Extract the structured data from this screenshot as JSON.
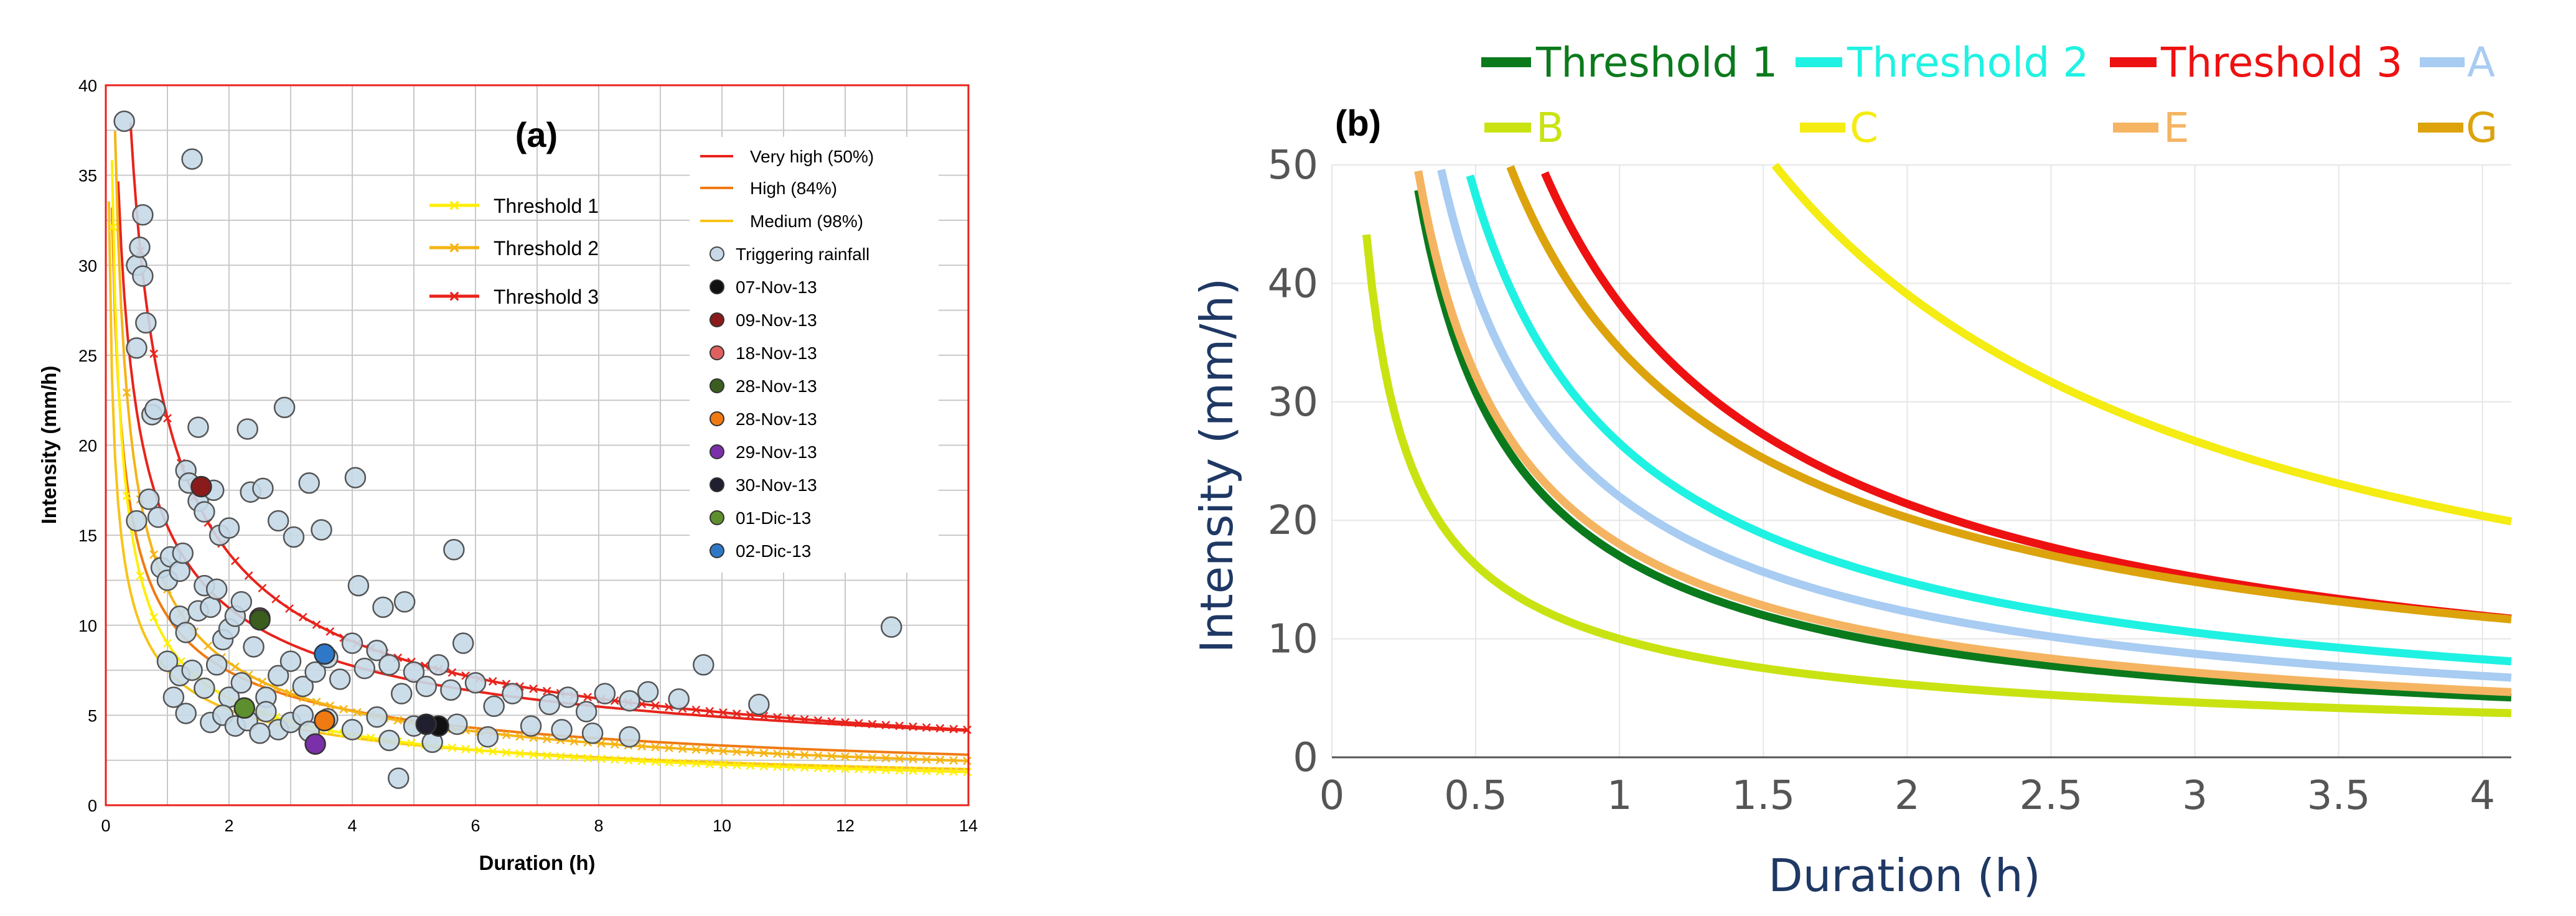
{
  "chart_data": [
    {
      "panel": "(a)",
      "type": "scatter",
      "xlabel": "Duration (h)",
      "ylabel": "Intensity (mm/h)",
      "xlim": [
        0,
        14
      ],
      "ylim": [
        0,
        40
      ],
      "xticks": [
        0,
        2,
        4,
        6,
        8,
        10,
        12,
        14
      ],
      "yticks": [
        0,
        5,
        10,
        15,
        20,
        25,
        30,
        35,
        40
      ],
      "grid": true,
      "curves": [
        {
          "name": "Very high (50%)",
          "a": 15.5,
          "b": 0.5,
          "color": "#e8231b",
          "marker": false
        },
        {
          "name": "High (84%)",
          "a": 10.5,
          "b": 0.5,
          "color": "#f07a12",
          "marker": false
        },
        {
          "name": "Medium (98%)",
          "a": 7.5,
          "b": 0.5,
          "color": "#f7c31a",
          "marker": false
        },
        {
          "name": "Threshold 1",
          "a": 9.0,
          "b": 0.6,
          "color": "#ffee00",
          "marker": true
        },
        {
          "name": "Threshold 2",
          "a": 12.0,
          "b": 0.6,
          "color": "#f5b416",
          "marker": true
        },
        {
          "name": "Threshold 3",
          "a": 21.5,
          "b": 0.62,
          "color": "#e8231b",
          "marker": true
        }
      ],
      "legend_curves_left": [
        "Threshold 1",
        "Threshold 2",
        "Threshold 3"
      ],
      "legend_curves_right": [
        "Very high (50%)",
        "High (84%)",
        "Medium (98%)"
      ],
      "triggering_rainfall_label": "Triggering rainfall",
      "triggering_rainfall": [
        [
          0.3,
          38.0
        ],
        [
          0.5,
          30.0
        ],
        [
          0.55,
          31.0
        ],
        [
          0.6,
          32.8
        ],
        [
          0.65,
          26.8
        ],
        [
          0.5,
          25.4
        ],
        [
          0.6,
          29.4
        ],
        [
          0.75,
          21.7
        ],
        [
          0.7,
          17.0
        ],
        [
          0.8,
          22.0
        ],
        [
          0.85,
          16.0
        ],
        [
          0.5,
          15.8
        ],
        [
          0.9,
          13.2
        ],
        [
          1.0,
          12.5
        ],
        [
          1.05,
          13.8
        ],
        [
          1.2,
          13.0
        ],
        [
          1.25,
          14.0
        ],
        [
          1.3,
          18.6
        ],
        [
          1.35,
          17.9
        ],
        [
          1.4,
          35.9
        ],
        [
          1.5,
          21.0
        ],
        [
          1.5,
          16.9
        ],
        [
          1.6,
          16.3
        ],
        [
          1.75,
          17.5
        ],
        [
          1.85,
          15.0
        ],
        [
          2.0,
          15.4
        ],
        [
          1.2,
          10.5
        ],
        [
          1.3,
          9.6
        ],
        [
          1.5,
          10.8
        ],
        [
          1.6,
          12.2
        ],
        [
          1.7,
          11.0
        ],
        [
          1.8,
          12.0
        ],
        [
          1.9,
          9.2
        ],
        [
          2.0,
          9.8
        ],
        [
          2.1,
          10.5
        ],
        [
          2.2,
          11.3
        ],
        [
          2.3,
          20.9
        ],
        [
          2.35,
          17.4
        ],
        [
          2.55,
          17.6
        ],
        [
          2.8,
          15.8
        ],
        [
          2.9,
          22.1
        ],
        [
          3.05,
          14.9
        ],
        [
          3.3,
          17.9
        ],
        [
          3.5,
          15.3
        ],
        [
          4.05,
          18.2
        ],
        [
          4.1,
          12.2
        ],
        [
          4.5,
          11.0
        ],
        [
          4.85,
          11.3
        ],
        [
          5.65,
          14.2
        ],
        [
          1.0,
          8.0
        ],
        [
          1.2,
          7.2
        ],
        [
          1.4,
          7.5
        ],
        [
          1.6,
          6.5
        ],
        [
          1.8,
          7.8
        ],
        [
          2.0,
          6.0
        ],
        [
          2.2,
          6.8
        ],
        [
          2.4,
          8.8
        ],
        [
          2.6,
          6.0
        ],
        [
          2.8,
          7.2
        ],
        [
          3.0,
          8.0
        ],
        [
          3.2,
          6.6
        ],
        [
          3.4,
          7.4
        ],
        [
          3.6,
          8.2
        ],
        [
          3.8,
          7.0
        ],
        [
          4.0,
          9.0
        ],
        [
          4.2,
          7.6
        ],
        [
          4.4,
          8.6
        ],
        [
          4.6,
          7.8
        ],
        [
          4.8,
          6.2
        ],
        [
          5.0,
          7.4
        ],
        [
          5.2,
          6.6
        ],
        [
          5.4,
          7.8
        ],
        [
          5.6,
          6.4
        ],
        [
          5.8,
          9.0
        ],
        [
          6.0,
          6.8
        ],
        [
          6.3,
          5.5
        ],
        [
          6.6,
          6.2
        ],
        [
          6.9,
          4.4
        ],
        [
          7.2,
          5.6
        ],
        [
          7.5,
          6.0
        ],
        [
          7.8,
          5.2
        ],
        [
          8.1,
          6.2
        ],
        [
          8.5,
          5.8
        ],
        [
          8.8,
          6.3
        ],
        [
          9.3,
          5.9
        ],
        [
          9.7,
          7.8
        ],
        [
          10.6,
          5.6
        ],
        [
          12.75,
          9.9
        ],
        [
          1.1,
          6.0
        ],
        [
          1.3,
          5.1
        ],
        [
          1.7,
          4.6
        ],
        [
          1.9,
          5.0
        ],
        [
          2.1,
          4.4
        ],
        [
          2.3,
          4.7
        ],
        [
          2.6,
          5.2
        ],
        [
          2.8,
          4.2
        ],
        [
          3.0,
          4.6
        ],
        [
          3.2,
          5.0
        ],
        [
          3.6,
          4.8
        ],
        [
          4.0,
          4.2
        ],
        [
          4.4,
          4.9
        ],
        [
          4.6,
          3.6
        ],
        [
          5.0,
          4.4
        ],
        [
          5.3,
          3.5
        ],
        [
          5.7,
          4.5
        ],
        [
          6.2,
          3.8
        ],
        [
          7.4,
          4.2
        ],
        [
          7.9,
          4.0
        ],
        [
          8.5,
          3.8
        ],
        [
          4.75,
          1.5
        ],
        [
          3.3,
          4.1
        ],
        [
          2.5,
          4.0
        ]
      ],
      "events": [
        {
          "label": "07-Nov-13",
          "color": "#111111",
          "points": [
            [
              5.4,
              4.4
            ]
          ]
        },
        {
          "label": "09-Nov-13",
          "color": "#8b1a1a",
          "points": [
            [
              1.55,
              17.7
            ]
          ]
        },
        {
          "label": "18-Nov-13",
          "color": "#e06060",
          "points": [
            [
              2.5,
              10.4
            ]
          ]
        },
        {
          "label": "28-Nov-13",
          "color": "#3b5e1e",
          "points": [
            [
              2.5,
              10.3
            ]
          ]
        },
        {
          "label": "28-Nov-13",
          "color": "#f07a12",
          "points": [
            [
              3.55,
              4.7
            ]
          ]
        },
        {
          "label": "29-Nov-13",
          "color": "#7b2fa8",
          "points": [
            [
              3.4,
              3.4
            ]
          ]
        },
        {
          "label": "30-Nov-13",
          "color": "#1f1f2f",
          "points": [
            [
              5.2,
              4.5
            ]
          ]
        },
        {
          "label": "01-Dic-13",
          "color": "#5e8f2e",
          "points": [
            [
              2.25,
              5.4
            ]
          ]
        },
        {
          "label": "02-Dic-13",
          "color": "#2f78c8",
          "points": [
            [
              3.55,
              8.4
            ]
          ]
        }
      ]
    },
    {
      "panel": "(b)",
      "type": "line",
      "xlabel": "Duration (h)",
      "ylabel": "Intensity (mm/h)",
      "xlim": [
        0,
        4.1
      ],
      "ylim": [
        0,
        50
      ],
      "xticks": [
        "0",
        "0.5",
        "1",
        "1.5",
        "2",
        "2.5",
        "3",
        "3.5",
        "4"
      ],
      "yticks": [
        "0",
        "10",
        "20",
        "30",
        "40",
        "50"
      ],
      "grid": true,
      "series": [
        {
          "name": "Threshold 1",
          "color": "#0b7a1c",
          "a": 17.0,
          "b": 0.86
        },
        {
          "name": "Threshold 2",
          "color": "#1ff2e2",
          "a": 26.5,
          "b": 0.84
        },
        {
          "name": "Threshold 3",
          "color": "#ee1111",
          "a": 38.3,
          "b": 0.84
        },
        {
          "name": "A",
          "color": "#a8ccf2",
          "a": 22.0,
          "b": 0.84
        },
        {
          "name": "B",
          "color": "#c9e312",
          "a": 10.0,
          "b": 0.7
        },
        {
          "name": "C",
          "color": "#f4ec12",
          "a": 75.0,
          "b": 0.94
        },
        {
          "name": "E",
          "color": "#f5b462",
          "a": 18.0,
          "b": 0.84
        },
        {
          "name": "G",
          "color": "#dca30c",
          "a": 34.5,
          "b": 0.77
        }
      ]
    }
  ]
}
